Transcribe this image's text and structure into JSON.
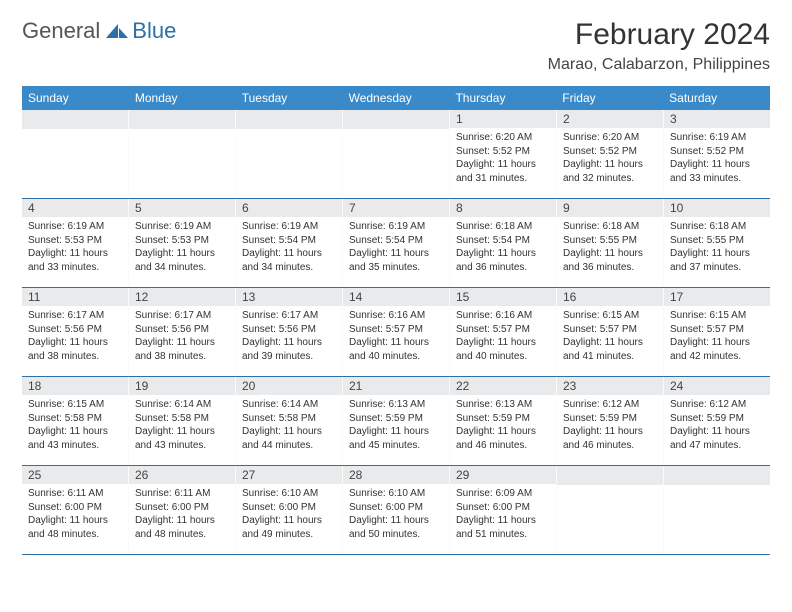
{
  "logo": {
    "text_general": "General",
    "text_blue": "Blue"
  },
  "title": "February 2024",
  "location": "Marao, Calabarzon, Philippines",
  "colors": {
    "header_bg": "#3a8ac9",
    "band_bg": "#e8eaec",
    "rule": "#2f6fa7",
    "logo_blue": "#2f6fa7",
    "text": "#333333",
    "background": "#ffffff"
  },
  "typography": {
    "title_fontsize": 30,
    "location_fontsize": 16,
    "dayheader_fontsize": 12,
    "daynum_fontsize": 12,
    "dayinfo_fontsize": 10
  },
  "day_headers": [
    "Sunday",
    "Monday",
    "Tuesday",
    "Wednesday",
    "Thursday",
    "Friday",
    "Saturday"
  ],
  "weeks": [
    [
      null,
      null,
      null,
      null,
      {
        "n": "1",
        "sr": "Sunrise: 6:20 AM",
        "ss": "Sunset: 5:52 PM",
        "dl1": "Daylight: 11 hours",
        "dl2": "and 31 minutes."
      },
      {
        "n": "2",
        "sr": "Sunrise: 6:20 AM",
        "ss": "Sunset: 5:52 PM",
        "dl1": "Daylight: 11 hours",
        "dl2": "and 32 minutes."
      },
      {
        "n": "3",
        "sr": "Sunrise: 6:19 AM",
        "ss": "Sunset: 5:52 PM",
        "dl1": "Daylight: 11 hours",
        "dl2": "and 33 minutes."
      }
    ],
    [
      {
        "n": "4",
        "sr": "Sunrise: 6:19 AM",
        "ss": "Sunset: 5:53 PM",
        "dl1": "Daylight: 11 hours",
        "dl2": "and 33 minutes."
      },
      {
        "n": "5",
        "sr": "Sunrise: 6:19 AM",
        "ss": "Sunset: 5:53 PM",
        "dl1": "Daylight: 11 hours",
        "dl2": "and 34 minutes."
      },
      {
        "n": "6",
        "sr": "Sunrise: 6:19 AM",
        "ss": "Sunset: 5:54 PM",
        "dl1": "Daylight: 11 hours",
        "dl2": "and 34 minutes."
      },
      {
        "n": "7",
        "sr": "Sunrise: 6:19 AM",
        "ss": "Sunset: 5:54 PM",
        "dl1": "Daylight: 11 hours",
        "dl2": "and 35 minutes."
      },
      {
        "n": "8",
        "sr": "Sunrise: 6:18 AM",
        "ss": "Sunset: 5:54 PM",
        "dl1": "Daylight: 11 hours",
        "dl2": "and 36 minutes."
      },
      {
        "n": "9",
        "sr": "Sunrise: 6:18 AM",
        "ss": "Sunset: 5:55 PM",
        "dl1": "Daylight: 11 hours",
        "dl2": "and 36 minutes."
      },
      {
        "n": "10",
        "sr": "Sunrise: 6:18 AM",
        "ss": "Sunset: 5:55 PM",
        "dl1": "Daylight: 11 hours",
        "dl2": "and 37 minutes."
      }
    ],
    [
      {
        "n": "11",
        "sr": "Sunrise: 6:17 AM",
        "ss": "Sunset: 5:56 PM",
        "dl1": "Daylight: 11 hours",
        "dl2": "and 38 minutes."
      },
      {
        "n": "12",
        "sr": "Sunrise: 6:17 AM",
        "ss": "Sunset: 5:56 PM",
        "dl1": "Daylight: 11 hours",
        "dl2": "and 38 minutes."
      },
      {
        "n": "13",
        "sr": "Sunrise: 6:17 AM",
        "ss": "Sunset: 5:56 PM",
        "dl1": "Daylight: 11 hours",
        "dl2": "and 39 minutes."
      },
      {
        "n": "14",
        "sr": "Sunrise: 6:16 AM",
        "ss": "Sunset: 5:57 PM",
        "dl1": "Daylight: 11 hours",
        "dl2": "and 40 minutes."
      },
      {
        "n": "15",
        "sr": "Sunrise: 6:16 AM",
        "ss": "Sunset: 5:57 PM",
        "dl1": "Daylight: 11 hours",
        "dl2": "and 40 minutes."
      },
      {
        "n": "16",
        "sr": "Sunrise: 6:15 AM",
        "ss": "Sunset: 5:57 PM",
        "dl1": "Daylight: 11 hours",
        "dl2": "and 41 minutes."
      },
      {
        "n": "17",
        "sr": "Sunrise: 6:15 AM",
        "ss": "Sunset: 5:57 PM",
        "dl1": "Daylight: 11 hours",
        "dl2": "and 42 minutes."
      }
    ],
    [
      {
        "n": "18",
        "sr": "Sunrise: 6:15 AM",
        "ss": "Sunset: 5:58 PM",
        "dl1": "Daylight: 11 hours",
        "dl2": "and 43 minutes."
      },
      {
        "n": "19",
        "sr": "Sunrise: 6:14 AM",
        "ss": "Sunset: 5:58 PM",
        "dl1": "Daylight: 11 hours",
        "dl2": "and 43 minutes."
      },
      {
        "n": "20",
        "sr": "Sunrise: 6:14 AM",
        "ss": "Sunset: 5:58 PM",
        "dl1": "Daylight: 11 hours",
        "dl2": "and 44 minutes."
      },
      {
        "n": "21",
        "sr": "Sunrise: 6:13 AM",
        "ss": "Sunset: 5:59 PM",
        "dl1": "Daylight: 11 hours",
        "dl2": "and 45 minutes."
      },
      {
        "n": "22",
        "sr": "Sunrise: 6:13 AM",
        "ss": "Sunset: 5:59 PM",
        "dl1": "Daylight: 11 hours",
        "dl2": "and 46 minutes."
      },
      {
        "n": "23",
        "sr": "Sunrise: 6:12 AM",
        "ss": "Sunset: 5:59 PM",
        "dl1": "Daylight: 11 hours",
        "dl2": "and 46 minutes."
      },
      {
        "n": "24",
        "sr": "Sunrise: 6:12 AM",
        "ss": "Sunset: 5:59 PM",
        "dl1": "Daylight: 11 hours",
        "dl2": "and 47 minutes."
      }
    ],
    [
      {
        "n": "25",
        "sr": "Sunrise: 6:11 AM",
        "ss": "Sunset: 6:00 PM",
        "dl1": "Daylight: 11 hours",
        "dl2": "and 48 minutes."
      },
      {
        "n": "26",
        "sr": "Sunrise: 6:11 AM",
        "ss": "Sunset: 6:00 PM",
        "dl1": "Daylight: 11 hours",
        "dl2": "and 48 minutes."
      },
      {
        "n": "27",
        "sr": "Sunrise: 6:10 AM",
        "ss": "Sunset: 6:00 PM",
        "dl1": "Daylight: 11 hours",
        "dl2": "and 49 minutes."
      },
      {
        "n": "28",
        "sr": "Sunrise: 6:10 AM",
        "ss": "Sunset: 6:00 PM",
        "dl1": "Daylight: 11 hours",
        "dl2": "and 50 minutes."
      },
      {
        "n": "29",
        "sr": "Sunrise: 6:09 AM",
        "ss": "Sunset: 6:00 PM",
        "dl1": "Daylight: 11 hours",
        "dl2": "and 51 minutes."
      },
      null,
      null
    ]
  ]
}
